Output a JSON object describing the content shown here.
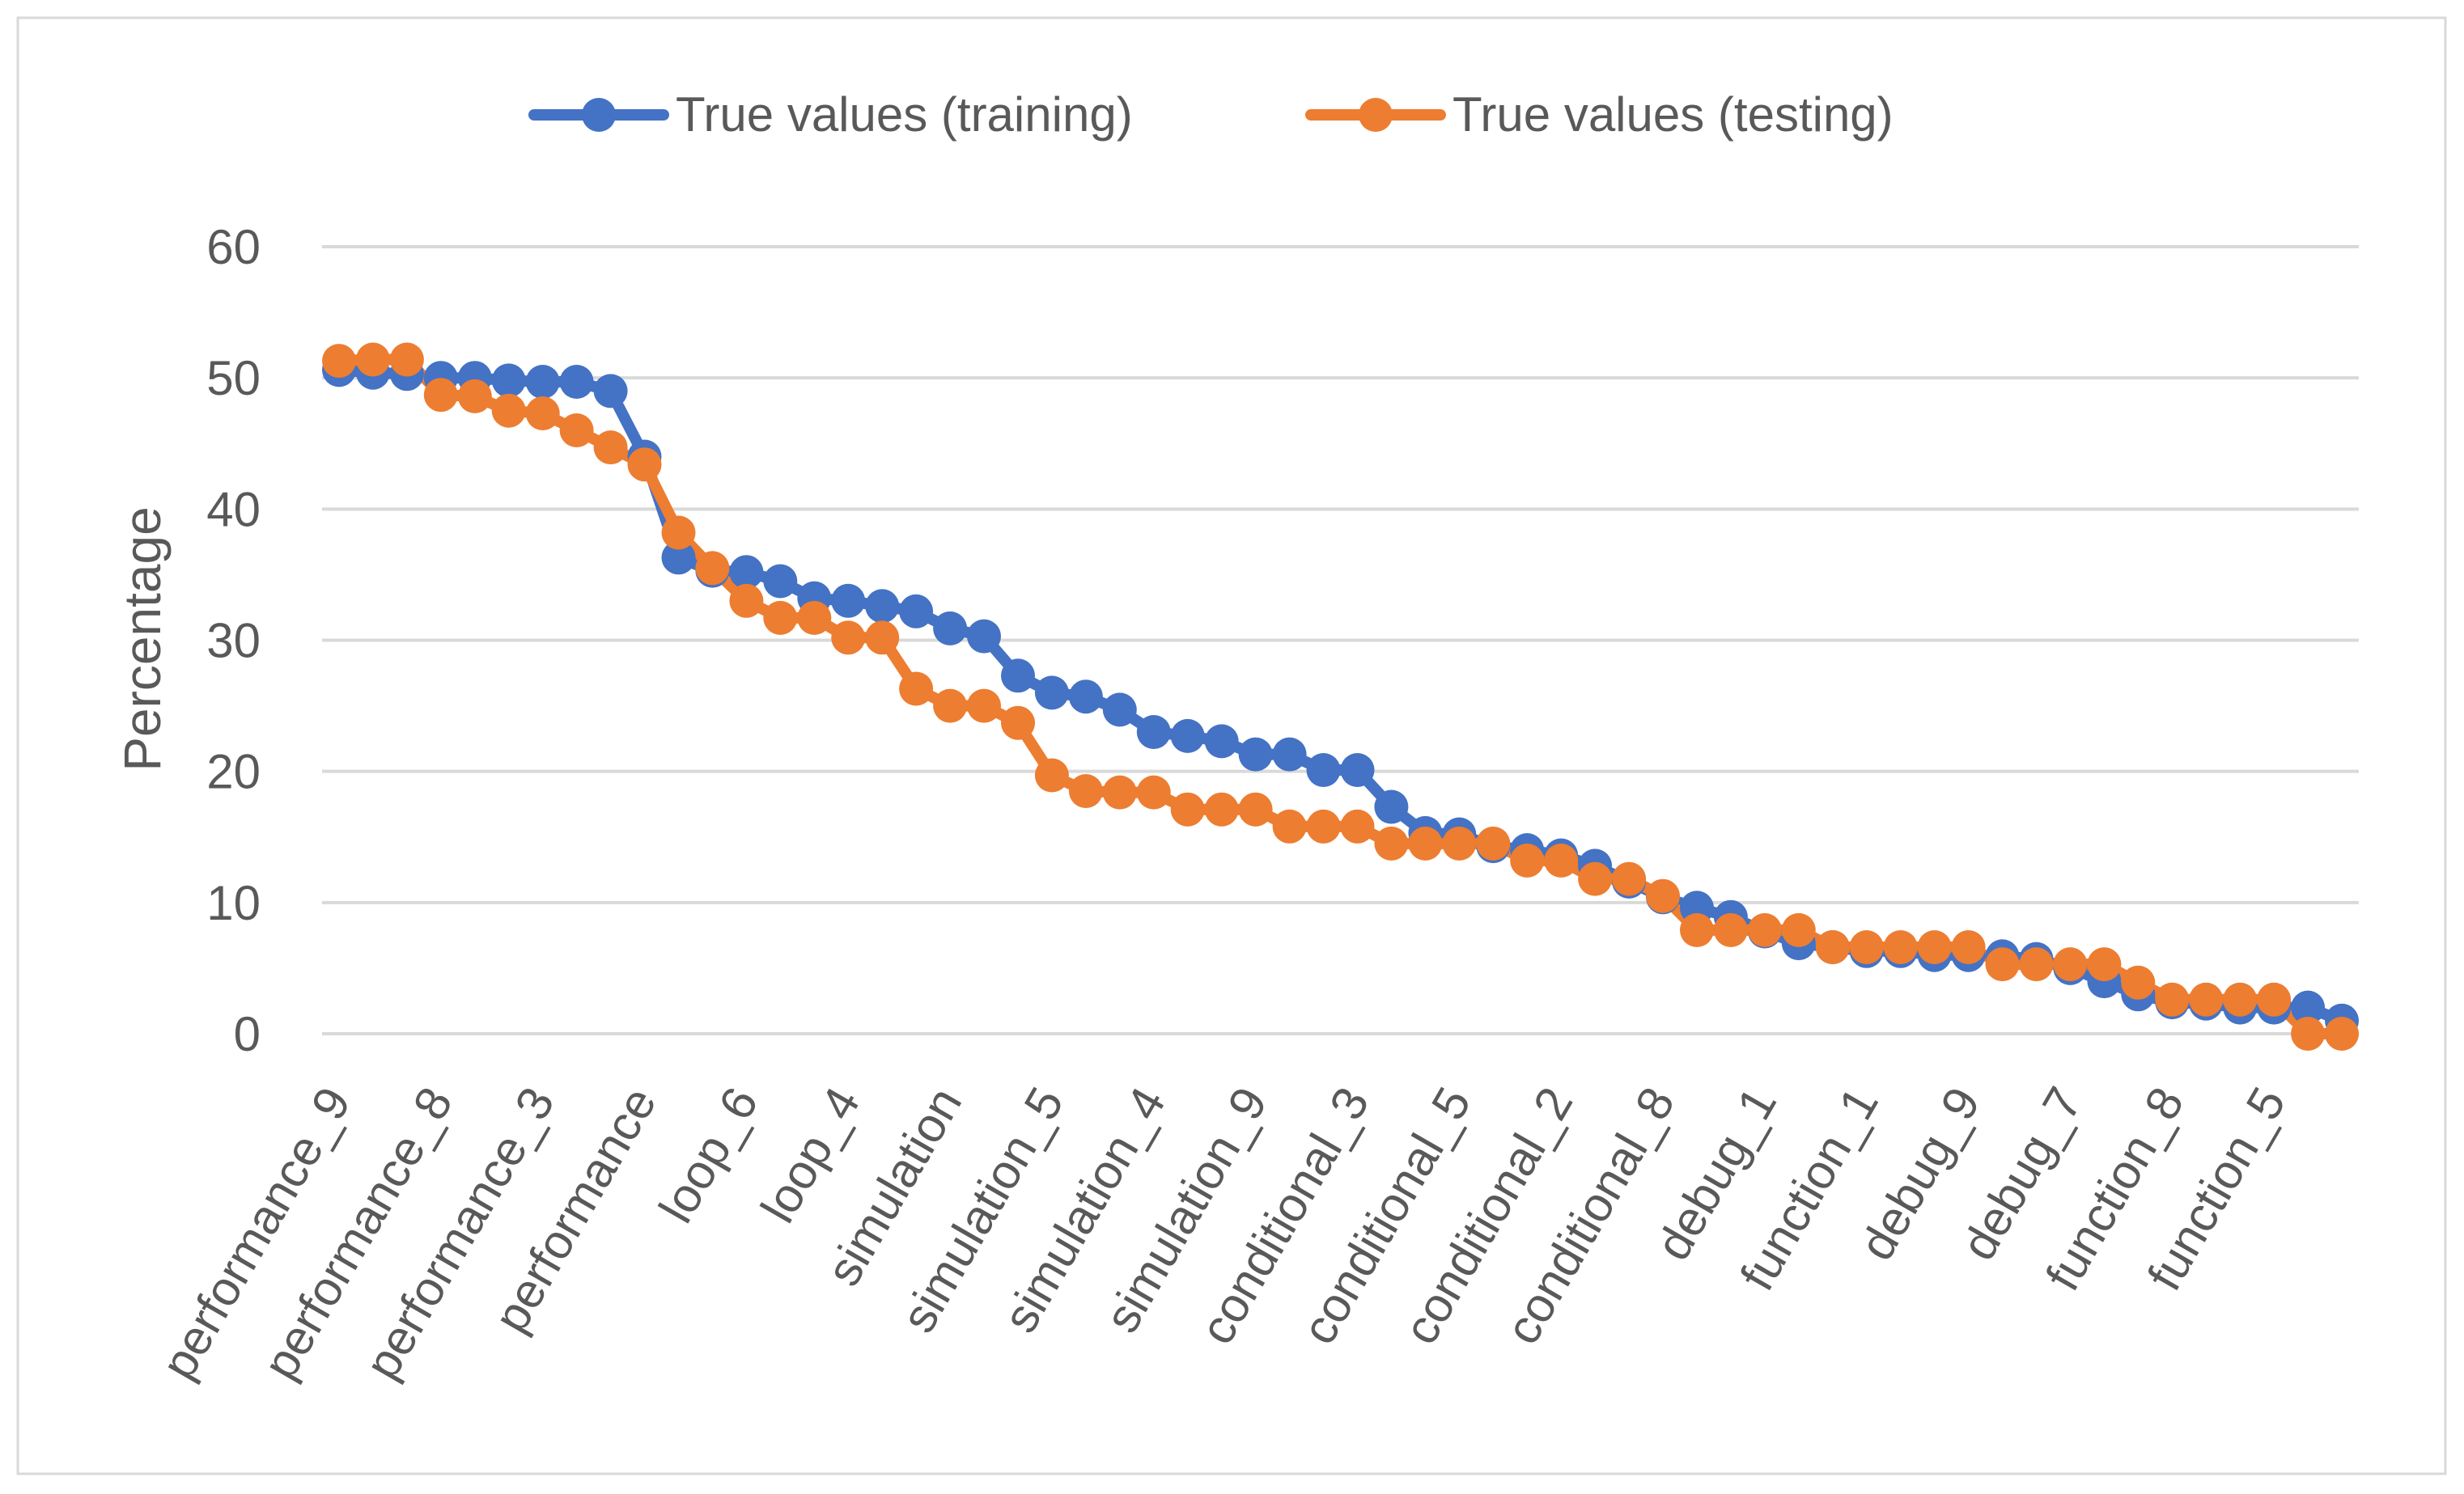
{
  "chart_data": {
    "type": "line",
    "title": "",
    "xlabel": "",
    "ylabel": "Percentage",
    "ylim": [
      0,
      60
    ],
    "yticks": [
      0,
      10,
      20,
      30,
      40,
      50,
      60
    ],
    "grid": true,
    "legend_position": "top-center",
    "x_tick_labels": [
      "performance_9",
      "performance_8",
      "performance_3",
      "performance",
      "loop_6",
      "loop_4",
      "simulation",
      "simulation_5",
      "simulation_4",
      "simulation_9",
      "conditional_3",
      "conditional_5",
      "conditional_2",
      "conditional_8",
      "debug_1",
      "function_1",
      "debug_9",
      "debug_7",
      "function_8",
      "function_5"
    ],
    "x_tick_every": 3,
    "series": [
      {
        "name": "True values (training)",
        "color": "#4472C4",
        "values": [
          50.6,
          50.4,
          50.3,
          50.0,
          50.0,
          49.8,
          49.7,
          49.7,
          49.0,
          44.0,
          36.3,
          35.3,
          35.2,
          34.5,
          33.2,
          33.0,
          32.6,
          32.2,
          30.9,
          30.3,
          27.3,
          26.0,
          25.7,
          24.7,
          23.0,
          22.7,
          22.3,
          21.3,
          21.3,
          20.1,
          20.1,
          17.3,
          15.3,
          15.2,
          14.3,
          14.0,
          13.6,
          12.8,
          11.6,
          10.4,
          9.6,
          8.9,
          7.8,
          6.9,
          6.6,
          6.3,
          6.3,
          6.0,
          6.0,
          5.9,
          5.7,
          5.0,
          4.0,
          3.0,
          2.4,
          2.3,
          2.0,
          2.0,
          2.0,
          1.0
        ]
      },
      {
        "name": "True values (testing)",
        "color": "#ED7D31",
        "values": [
          51.3,
          51.4,
          51.4,
          48.7,
          48.6,
          47.5,
          47.3,
          46.0,
          44.7,
          43.4,
          38.2,
          35.5,
          33.0,
          31.7,
          31.7,
          30.2,
          30.2,
          26.3,
          25.0,
          25.0,
          23.7,
          19.7,
          18.5,
          18.4,
          18.4,
          17.1,
          17.1,
          17.1,
          15.8,
          15.8,
          15.8,
          14.5,
          14.5,
          14.5,
          14.5,
          13.2,
          13.2,
          11.8,
          11.8,
          10.5,
          7.9,
          7.9,
          7.9,
          7.9,
          6.6,
          6.6,
          6.6,
          6.6,
          6.6,
          5.3,
          5.3,
          5.3,
          5.3,
          3.9,
          2.6,
          2.6,
          2.6,
          2.6,
          0.0,
          0.0
        ]
      }
    ]
  }
}
